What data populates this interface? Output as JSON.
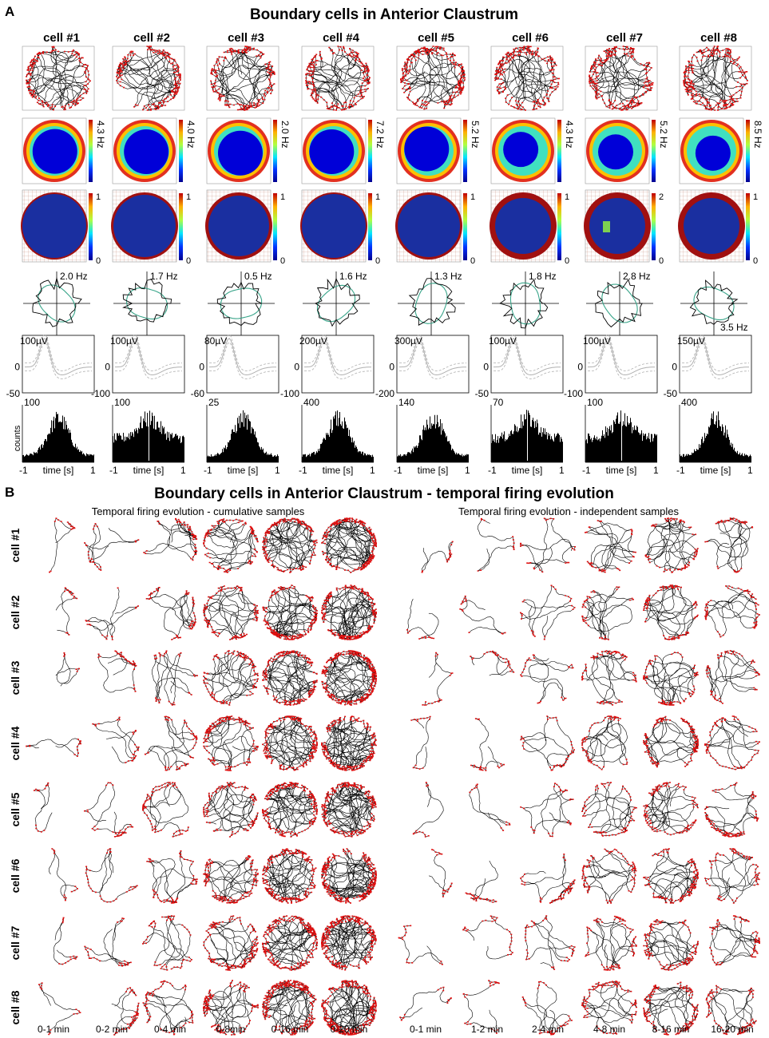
{
  "panel_a": {
    "letter": "A",
    "title": "Boundary cells in Anterior Claustrum",
    "cells": [
      {
        "label": "cell #1",
        "rate": "4.3 Hz",
        "corr_max": "1",
        "corr_min": "0",
        "polar": "2.0 Hz",
        "wf_top": "100µV",
        "wf_mid": "0",
        "wf_bot": "-50",
        "ac_max": "100"
      },
      {
        "label": "cell #2",
        "rate": "4.0 Hz",
        "corr_max": "1",
        "corr_min": "0",
        "polar": "1.7 Hz",
        "wf_top": "100µV",
        "wf_mid": "0",
        "wf_bot": "-100",
        "ac_max": "100"
      },
      {
        "label": "cell #3",
        "rate": "2.0 Hz",
        "corr_max": "1",
        "corr_min": "0",
        "polar": "0.5 Hz",
        "wf_top": "80µV",
        "wf_mid": "0",
        "wf_bot": "-60",
        "ac_max": "25"
      },
      {
        "label": "cell #4",
        "rate": "7.2 Hz",
        "corr_max": "1",
        "corr_min": "0",
        "polar": "1.6 Hz",
        "wf_top": "200µV",
        "wf_mid": "0",
        "wf_bot": "-100",
        "ac_max": "400"
      },
      {
        "label": "cell #5",
        "rate": "5.2 Hz",
        "corr_max": "1",
        "corr_min": "0",
        "polar": "1.3 Hz",
        "wf_top": "300µV",
        "wf_mid": "0",
        "wf_bot": "-200",
        "ac_max": "140"
      },
      {
        "label": "cell #6",
        "rate": "4.3 Hz",
        "corr_max": "1",
        "corr_min": "0",
        "polar": "1.8 Hz",
        "wf_top": "100µV",
        "wf_mid": "0",
        "wf_bot": "-50",
        "ac_max": "70"
      },
      {
        "label": "cell #7",
        "rate": "5.2 Hz",
        "corr_max": "2",
        "corr_min": "0",
        "polar": "2.8 Hz",
        "wf_top": "100µV",
        "wf_mid": "0",
        "wf_bot": "-100",
        "ac_max": "100"
      },
      {
        "label": "cell #8",
        "rate": "8.5 Hz",
        "corr_max": "1",
        "corr_min": "0",
        "polar": "3.5 Hz",
        "wf_top": "150µV",
        "wf_mid": "0",
        "wf_bot": "-50",
        "ac_max": "400"
      }
    ],
    "counts_label": "counts",
    "time_label": "time [s]",
    "time_min": "-1",
    "time_max": "1"
  },
  "panel_b": {
    "letter": "B",
    "title": "Boundary cells in Anterior Claustrum - temporal firing evolution",
    "left_subtitle": "Temporal firing evolution - cumulative samples",
    "right_subtitle": "Temporal firing evolution - independent samples",
    "row_labels": [
      "cell #1",
      "cell #2",
      "cell #3",
      "cell #4",
      "cell #5",
      "cell #6",
      "cell #7",
      "cell #8"
    ],
    "left_columns": [
      "0-1 min",
      "0-2 min",
      "0-4 min",
      "0-8min",
      "0-16 min",
      "0-20 min"
    ],
    "right_columns": [
      "0-1 min",
      "1-2 min",
      "2-4 min",
      "4-8 min",
      "8-16 min",
      "16-20 min"
    ]
  },
  "colors": {
    "trajectory": "#000000",
    "spikes": "#e01010",
    "polar_fit": "#3aa58a",
    "waveform": "#b0b0b0",
    "heat_low": "#0000d8",
    "heat_high": "#c00000",
    "corr_high": "#a01010"
  }
}
